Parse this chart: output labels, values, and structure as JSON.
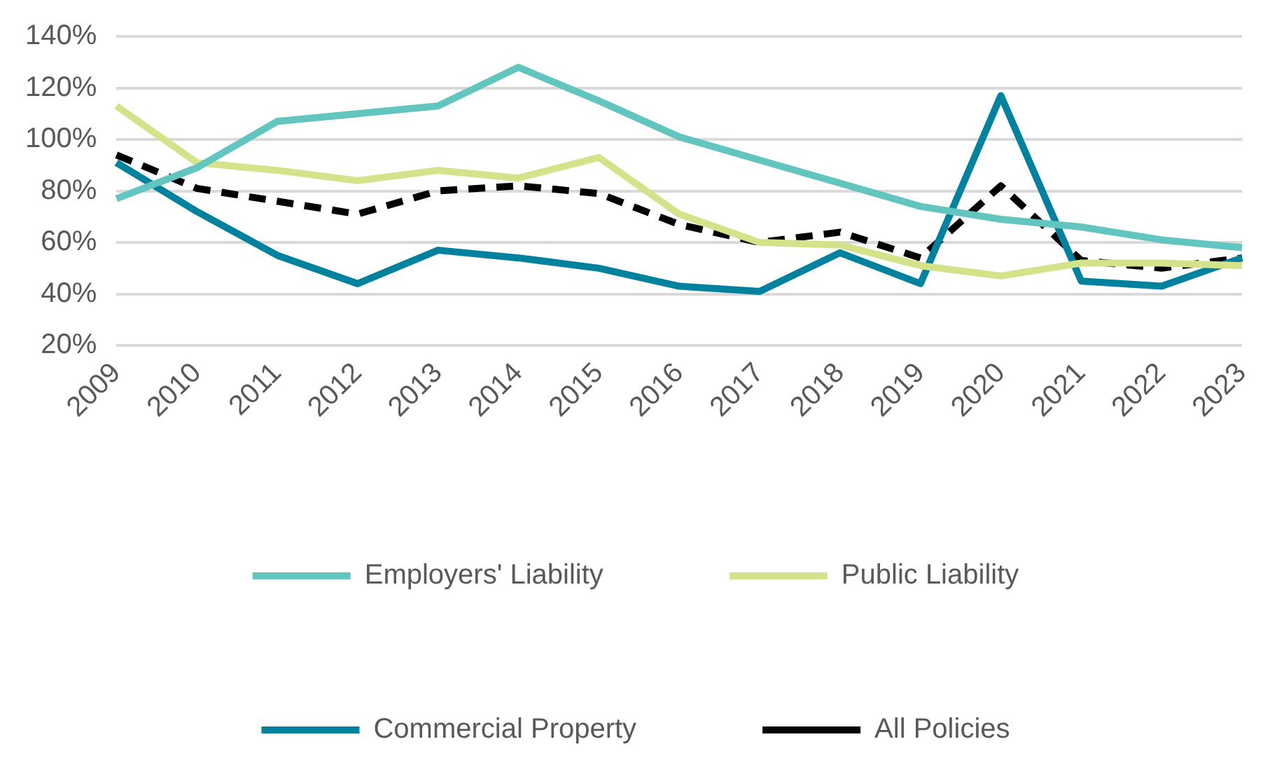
{
  "chart_data": {
    "type": "line",
    "categories": [
      "2009",
      "2010",
      "2011",
      "2012",
      "2013",
      "2014",
      "2015",
      "2016",
      "2017",
      "2018",
      "2019",
      "2020",
      "2021",
      "2022",
      "2023"
    ],
    "series": [
      {
        "name": "Employers' Liability",
        "color": "#62c5c0",
        "values": [
          77,
          89,
          107,
          110,
          113,
          128,
          115,
          101,
          92,
          83,
          74,
          69,
          66,
          61,
          58
        ]
      },
      {
        "name": "Public Liability",
        "color": "#d4e38a",
        "values": [
          113,
          91,
          88,
          84,
          88,
          85,
          93,
          71,
          60,
          59,
          51,
          47,
          52,
          52,
          51
        ]
      },
      {
        "name": "Commercial Property",
        "color": "#00829e",
        "values": [
          91,
          72,
          55,
          44,
          57,
          54,
          50,
          43,
          41,
          56,
          44,
          117,
          45,
          43,
          54
        ]
      },
      {
        "name": "All Policies",
        "color": "#000000",
        "line_style": "dashed",
        "values": [
          94,
          81,
          76,
          71,
          80,
          82,
          79,
          67,
          60,
          64,
          54,
          82,
          53,
          50,
          54
        ]
      }
    ],
    "ylim": [
      20,
      140
    ],
    "yticks": [
      {
        "value": 20,
        "label": "20%"
      },
      {
        "value": 40,
        "label": "40%"
      },
      {
        "value": 60,
        "label": "60%"
      },
      {
        "value": 80,
        "label": "80%"
      },
      {
        "value": 100,
        "label": "100%"
      },
      {
        "value": 120,
        "label": "120%"
      },
      {
        "value": 140,
        "label": "140%"
      }
    ],
    "grid": "y",
    "legend": "bottom",
    "marker": "none",
    "line_style": "solid"
  }
}
